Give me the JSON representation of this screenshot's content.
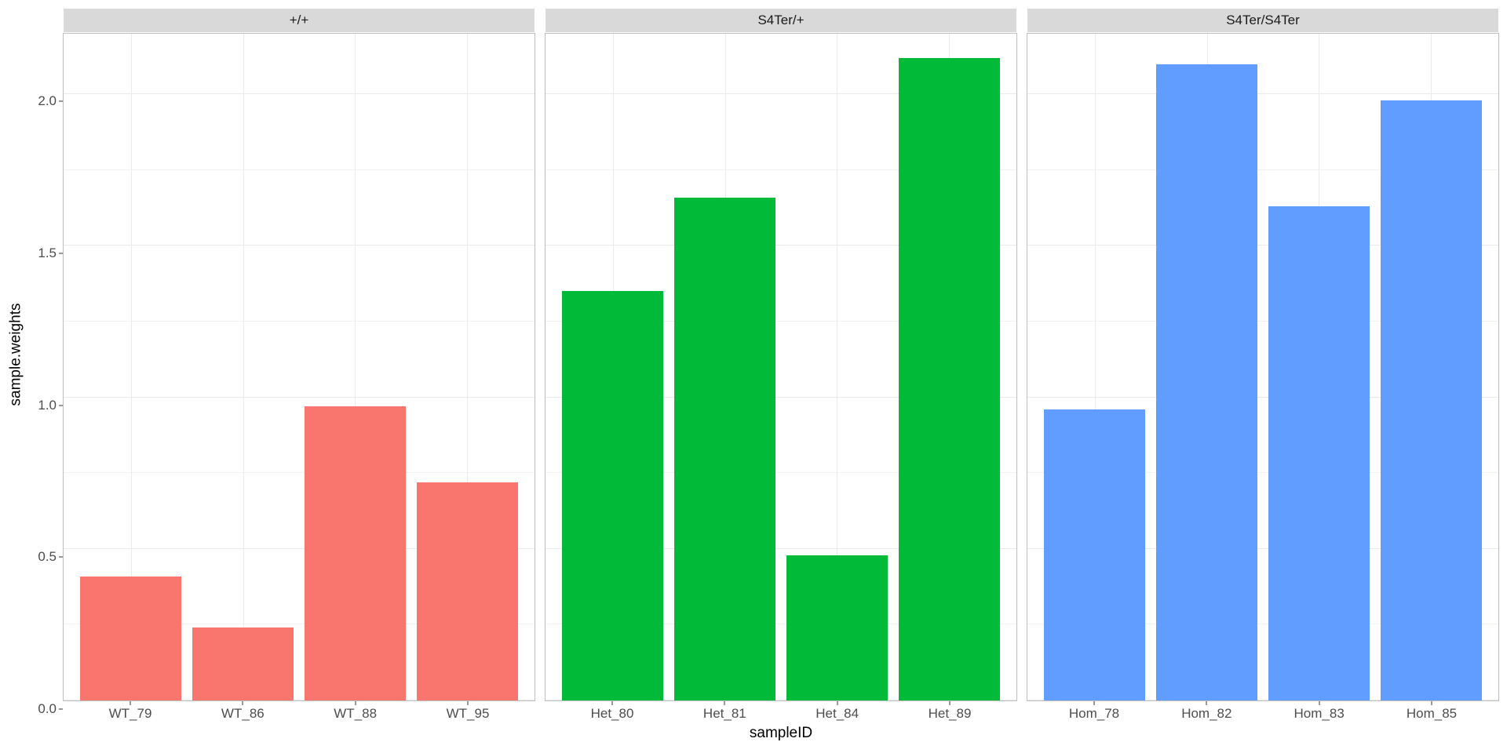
{
  "chart": {
    "type": "bar",
    "x_axis_title": "sampleID",
    "y_axis_title": "sample.weights",
    "ylim": [
      0,
      2.2
    ],
    "y_ticks": [
      0.0,
      0.5,
      1.0,
      1.5,
      2.0
    ],
    "y_tick_labels": [
      "0.0",
      "0.5",
      "1.0",
      "1.5",
      "2.0"
    ],
    "y_minor_ticks": [
      0.25,
      0.75,
      1.25,
      1.75
    ],
    "panel_background": "#ffffff",
    "grid_major_color": "#ebebeb",
    "grid_minor_color": "#f2f2f2",
    "panel_border_color": "#bfbfbf",
    "strip_background": "#d9d9d9",
    "axis_text_color": "#4d4d4d",
    "axis_title_color": "#000000",
    "axis_text_fontsize": 17,
    "axis_title_fontsize": 19,
    "strip_text_fontsize": 17,
    "bar_width": 0.9,
    "facets": [
      {
        "label": "+/+",
        "color": "#f8766d",
        "categories": [
          "WT_79",
          "WT_86",
          "WT_88",
          "WT_95"
        ],
        "values": [
          0.41,
          0.24,
          0.97,
          0.72
        ]
      },
      {
        "label": "S4Ter/+",
        "color": "#00ba38",
        "categories": [
          "Het_80",
          "Het_81",
          "Het_84",
          "Het_89"
        ],
        "values": [
          1.35,
          1.66,
          0.48,
          2.12
        ]
      },
      {
        "label": "S4Ter/S4Ter",
        "color": "#619cff",
        "categories": [
          "Hom_78",
          "Hom_82",
          "Hom_83",
          "Hom_85"
        ],
        "values": [
          0.96,
          2.1,
          1.63,
          1.98
        ]
      }
    ]
  }
}
